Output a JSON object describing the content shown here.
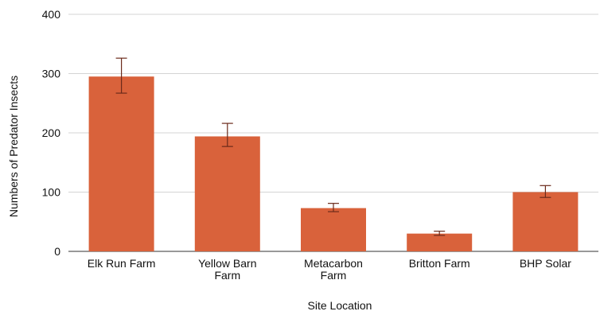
{
  "chart_data": {
    "type": "bar",
    "title": "",
    "xlabel": "Site Location",
    "ylabel": "Numbers of Predator Insects",
    "categories": [
      "Elk Run Farm",
      "Yellow Barn Farm",
      "Metacarbon Farm",
      "Britton Farm",
      "BHP Solar"
    ],
    "category_lines": [
      [
        "Elk Run Farm"
      ],
      [
        "Yellow Barn",
        "Farm"
      ],
      [
        "Metacarbon",
        "Farm"
      ],
      [
        "Britton Farm"
      ],
      [
        "BHP Solar"
      ]
    ],
    "values": [
      295,
      194,
      73,
      30,
      100
    ],
    "error_low": [
      267,
      177,
      67,
      27,
      91
    ],
    "error_high": [
      326,
      216,
      81,
      34,
      111
    ],
    "ylim": [
      0,
      400
    ],
    "yticks": [
      0,
      100,
      200,
      300,
      400
    ],
    "grid": true,
    "legend": "none",
    "bar_color": "#d9623b",
    "error_bar_color": "#6b2a1a",
    "grid_color": "#d4d4d4"
  }
}
